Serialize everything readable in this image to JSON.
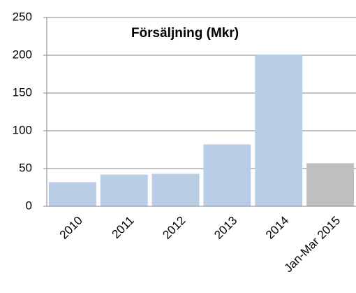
{
  "chart_data": {
    "type": "bar",
    "title": "Försäljning (Mkr)",
    "categories": [
      "2010",
      "2011",
      "2012",
      "2013",
      "2014",
      "Jan-Mar 2015"
    ],
    "values": [
      32,
      42,
      43,
      82,
      201,
      57
    ],
    "colors": [
      "#b9cde5",
      "#b9cde5",
      "#b9cde5",
      "#b9cde5",
      "#b9cde5",
      "#bfbfbf"
    ],
    "ylim": [
      0,
      250
    ],
    "yticks": [
      0,
      50,
      100,
      150,
      200,
      250
    ],
    "grid": true
  }
}
